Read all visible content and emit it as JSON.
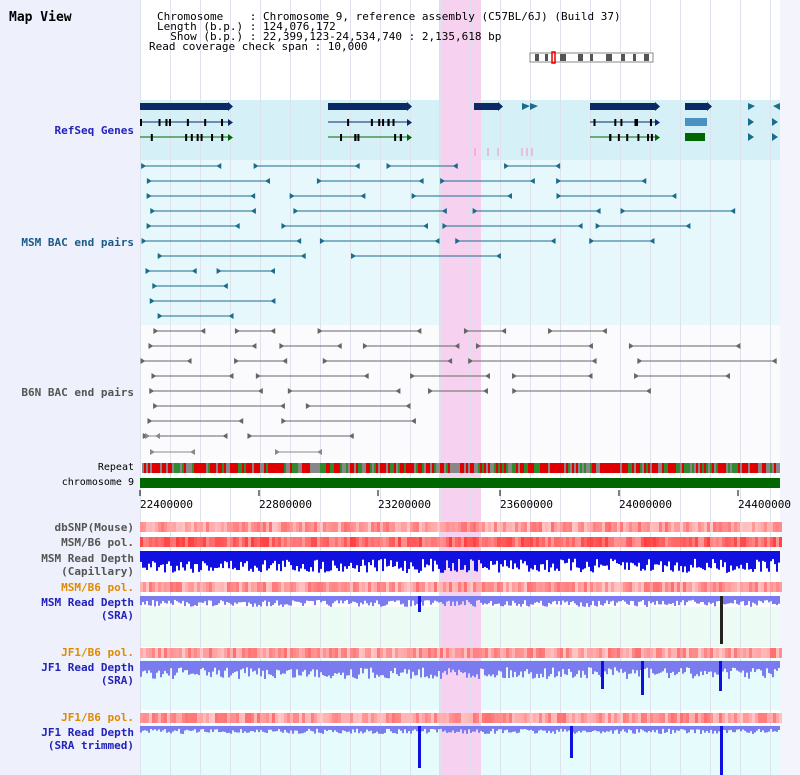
{
  "title": "Map View",
  "header": {
    "line1": "Chromosome    : Chromosome 9, reference assembly (C57BL/6J) (Build 37)",
    "line2": "Length (b.p.) : 124,076,172",
    "line3": "  Show (b.p.) : 22,399,123-24,534,740 : 2,135,618 bp",
    "line4": "Read coverage check span : 10,000"
  },
  "tracks": {
    "refseq": "RefSeq Genes",
    "msm_bac": "MSM BAC end pairs",
    "b6n_bac": "B6N BAC end pairs",
    "repeat": "Repeat",
    "chromosome": "chromosome 9",
    "dbsnp": "dbSNP(Mouse)",
    "msm_b6_pol_1": "MSM/B6 pol.",
    "msm_depth_cap": "MSM Read Depth\n(Capillary)",
    "msm_b6_pol_2": "MSM/B6 pol.",
    "msm_depth_sra": "MSM Read Depth\n(SRA)",
    "jf1_b6_pol_1": "JF1/B6 pol.",
    "jf1_depth_sra": "JF1 Read Depth\n(SRA)",
    "jf1_b6_pol_2": "JF1/B6 pol.",
    "jf1_depth_trim": "JF1 Read Depth\n(SRA trimmed)"
  },
  "axis": {
    "ticks": [
      "22400000",
      "22800000",
      "23200000",
      "23600000",
      "24000000",
      "24400000"
    ]
  },
  "colors": {
    "navy": "#0a2a66",
    "teal": "#1a6c8c",
    "grey": "#666666",
    "green": "#006600",
    "blue": "#1010e0",
    "blue_light": "#7b7bf0",
    "label_blue": "#2222bb",
    "label_teal": "#1a5a8a",
    "label_orange": "#e08a00"
  }
}
